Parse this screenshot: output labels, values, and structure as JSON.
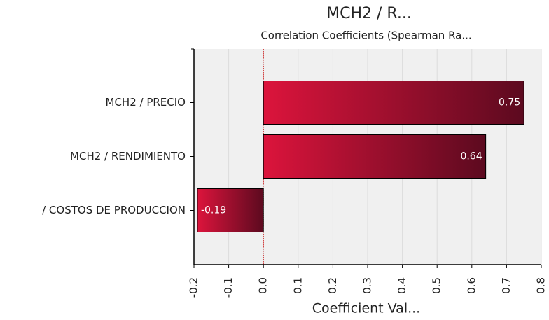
{
  "chart_data": {
    "type": "bar",
    "orientation": "horizontal",
    "title": "MCH2 /  R...",
    "subtitle": "Correlation Coefficients (Spearman Ra...",
    "x_label": "Coefficient Val...",
    "categories": [
      "MCH2 / PRECIO",
      "MCH2 / RENDIMIENTO",
      "/ COSTOS DE PRODUCCION"
    ],
    "values": [
      0.75,
      0.64,
      -0.19
    ],
    "color": [
      "#dc143c",
      "#5c0a1f"
    ],
    "xlim": [
      -0.2,
      0.8
    ],
    "xticks": [
      -0.2,
      -0.1,
      {
        "value": 0,
        "label": "0.0"
      },
      0.1,
      0.2,
      0.3,
      0.4,
      0.5,
      0.6,
      0.7,
      0.8
    ],
    "grid": true
  }
}
